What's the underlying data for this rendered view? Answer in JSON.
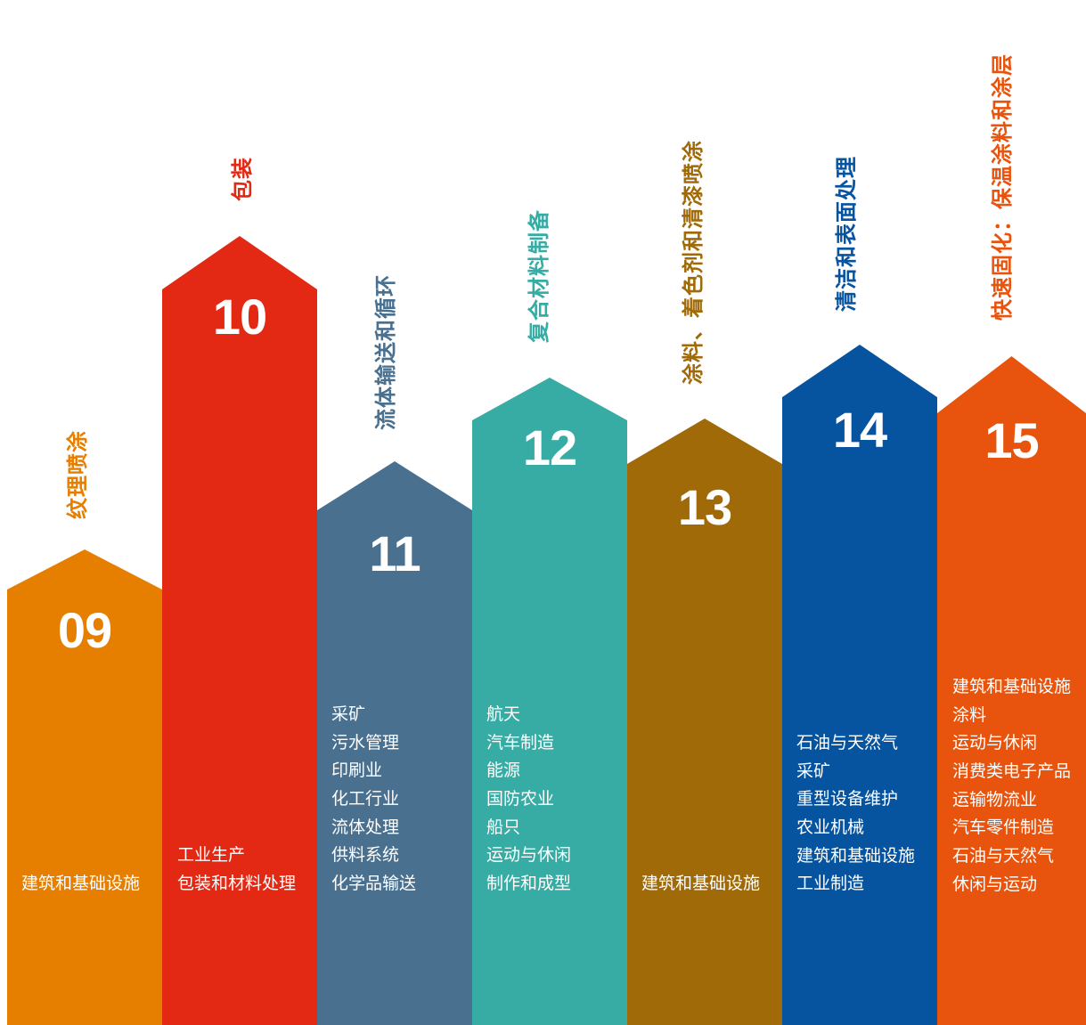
{
  "columns": [
    {
      "number": "09",
      "title": "纹理喷涂",
      "color": "#E67E00",
      "title_color": "#E67E00",
      "items": [
        "建筑和基础设施"
      ]
    },
    {
      "number": "10",
      "title": "包装",
      "color": "#E32814",
      "title_color": "#E32814",
      "items": [
        "工业生产",
        "包装和材料处理"
      ]
    },
    {
      "number": "11",
      "title": "流体输送和循环",
      "color": "#4A7090",
      "title_color": "#4A7090",
      "items": [
        "采矿",
        "污水管理",
        "印刷业",
        "化工行业",
        "流体处理",
        "供料系统",
        "化学品输送"
      ]
    },
    {
      "number": "12",
      "title": "复合材料制备",
      "color": "#36ACA4",
      "title_color": "#36ACA4",
      "items": [
        "航天",
        "汽车制造",
        "能源",
        "国防农业",
        "船只",
        "运动与休闲",
        "制作和成型"
      ]
    },
    {
      "number": "13",
      "title": "涂料、着色剂和清漆喷涂",
      "color": "#A06A08",
      "title_color": "#A06A08",
      "items": [
        "建筑和基础设施"
      ]
    },
    {
      "number": "14",
      "title": "清洁和表面处理",
      "color": "#0654A0",
      "title_color": "#0654A0",
      "items": [
        "石油与天然气",
        "采矿",
        "重型设备维护",
        "农业机械",
        "建筑和基础设施",
        "工业制造"
      ]
    },
    {
      "number": "15",
      "title": "快速固化：保温涂料和涂层",
      "color": "#E8540E",
      "title_color": "#E8540E",
      "items": [
        "建筑和基础设施",
        "涂料",
        "运动与休闲",
        "消费类电子产品",
        "运输物流业",
        "汽车零件制造",
        "石油与天然气",
        "休闲与运动"
      ]
    }
  ]
}
